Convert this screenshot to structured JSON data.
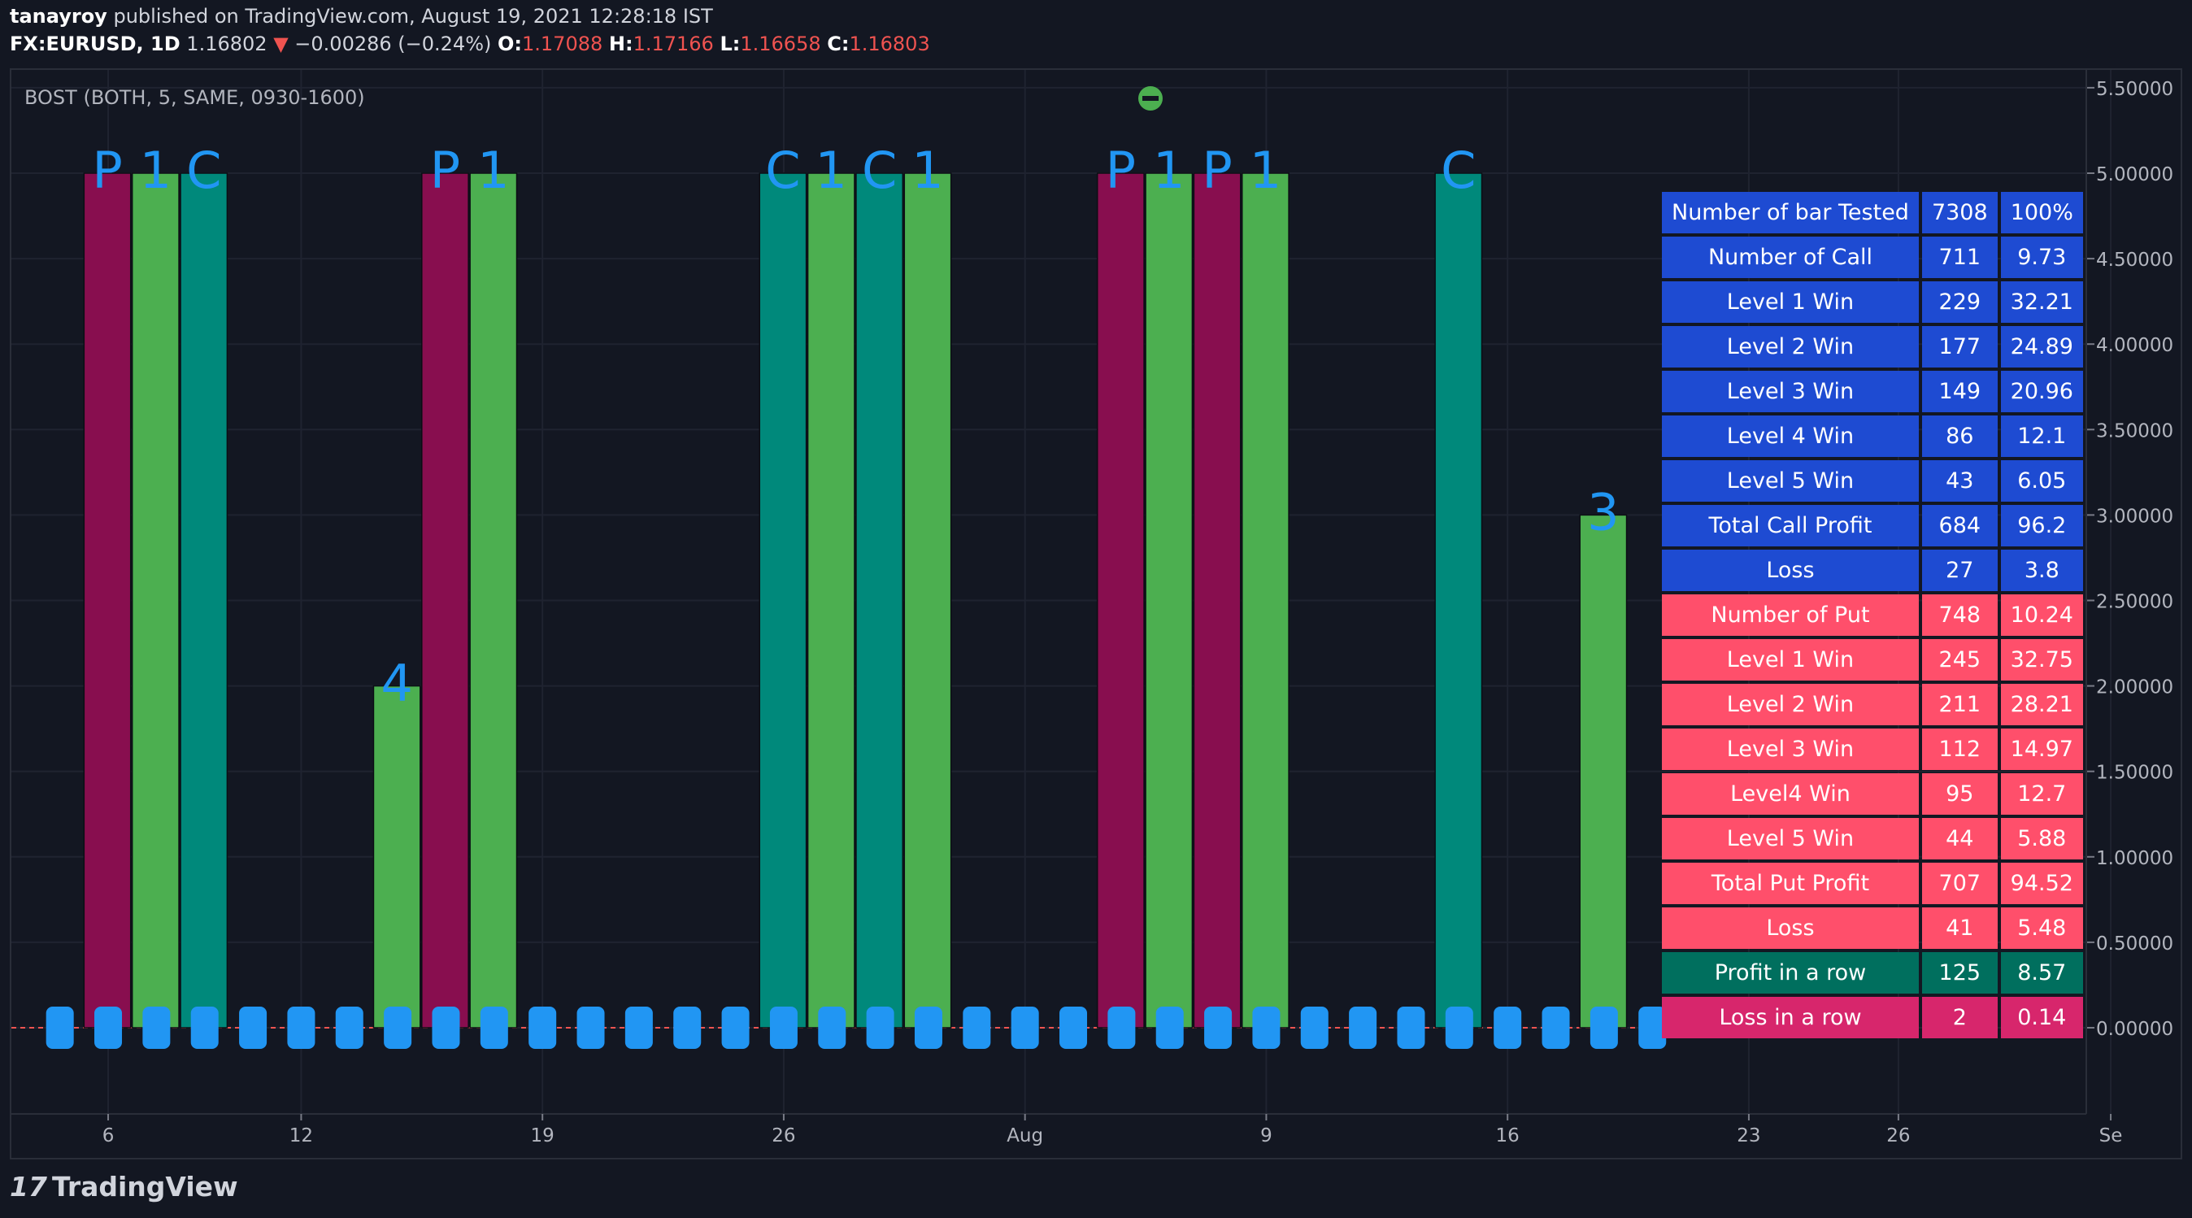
{
  "header": {
    "author": "tanayroy",
    "published_text": " published on TradingView.com, August 19, 2021 12:28:18 IST",
    "symbol": "FX:EURUSD, 1D",
    "last": "1.16802",
    "change_arrow": "▼",
    "change": "−0.00286 (−0.24%)",
    "open_label": "O:",
    "open": "1.17088",
    "high_label": "H:",
    "high": "1.17166",
    "low_label": "L:",
    "low": "1.16658",
    "close_label": "C:",
    "close": "1.16803"
  },
  "indicator_label": "BOST (BOTH, 5, SAME, 0930-1600)",
  "footer": {
    "logo_mark": "17",
    "logo_text": "TradingView"
  },
  "colors": {
    "background": "#131722",
    "grid": "#1f2330",
    "put_bar": "#880e4f",
    "green_bar": "#4caf50",
    "call_bar": "#00897b",
    "marker_text": "#2196f3",
    "zero_line": "#ef5350",
    "table_blue": "#1e4bd2",
    "table_red": "#ff4f6b",
    "table_green": "#006f5e",
    "table_pink": "#d7266c"
  },
  "chart_data": {
    "type": "bar",
    "y_axis": {
      "ylim": [
        -0.5,
        5.65
      ],
      "ticks": [
        5.5,
        5.0,
        4.5,
        4.0,
        3.5,
        3.0,
        2.5,
        2.0,
        1.5,
        1.0,
        0.5,
        0.0
      ],
      "tick_labels": [
        "5.50000",
        "5.00000",
        "4.50000",
        "4.00000",
        "3.50000",
        "3.00000",
        "2.50000",
        "2.00000",
        "1.50000",
        "1.00000",
        "0.50000",
        "0.00000"
      ]
    },
    "x_axis": {
      "ticks": [
        {
          "slot": 1,
          "label": "6"
        },
        {
          "slot": 5,
          "label": "12"
        },
        {
          "slot": 10,
          "label": "19"
        },
        {
          "slot": 15,
          "label": "26"
        },
        {
          "slot": 20,
          "label": "Aug"
        },
        {
          "slot": 25,
          "label": "9"
        },
        {
          "slot": 30,
          "label": "16"
        },
        {
          "slot": 35,
          "label": "23"
        },
        {
          "slot": 38.1,
          "label": "26"
        },
        {
          "slot": 42.5,
          "label": "Se"
        }
      ]
    },
    "slot_count": 43,
    "marker_slots": [
      0,
      1,
      2,
      3,
      4,
      5,
      6,
      7,
      8,
      9,
      10,
      11,
      12,
      13,
      14,
      15,
      16,
      17,
      18,
      19,
      20,
      21,
      22,
      23,
      24,
      25,
      26,
      27,
      28,
      29,
      30,
      31,
      32,
      33
    ],
    "bars": [
      {
        "slot": 1,
        "value": 5,
        "kind": "put",
        "label": "P"
      },
      {
        "slot": 2,
        "value": 5,
        "kind": "green",
        "label": "1"
      },
      {
        "slot": 3,
        "value": 5,
        "kind": "call",
        "label": "C"
      },
      {
        "slot": 7,
        "value": 2,
        "kind": "green",
        "label": "4"
      },
      {
        "slot": 8,
        "value": 5,
        "kind": "put",
        "label": "P"
      },
      {
        "slot": 9,
        "value": 5,
        "kind": "green",
        "label": "1"
      },
      {
        "slot": 15,
        "value": 5,
        "kind": "call",
        "label": "C"
      },
      {
        "slot": 16,
        "value": 5,
        "kind": "green",
        "label": "1"
      },
      {
        "slot": 17,
        "value": 5,
        "kind": "call",
        "label": "C"
      },
      {
        "slot": 18,
        "value": 5,
        "kind": "green",
        "label": "1"
      },
      {
        "slot": 22,
        "value": 5,
        "kind": "put",
        "label": "P"
      },
      {
        "slot": 23,
        "value": 5,
        "kind": "green",
        "label": "1"
      },
      {
        "slot": 24,
        "value": 5,
        "kind": "put",
        "label": "P"
      },
      {
        "slot": 25,
        "value": 5,
        "kind": "green",
        "label": "1"
      },
      {
        "slot": 29,
        "value": 5,
        "kind": "call",
        "label": "C"
      },
      {
        "slot": 32,
        "value": 3,
        "kind": "green",
        "label": "3"
      }
    ]
  },
  "table": {
    "rows": [
      {
        "label": "Number of bar Tested",
        "count": "7308",
        "pct": "100%",
        "style": "blue"
      },
      {
        "label": "Number of Call",
        "count": "711",
        "pct": "9.73",
        "style": "blue"
      },
      {
        "label": "Level 1 Win",
        "count": "229",
        "pct": "32.21",
        "style": "blue"
      },
      {
        "label": "Level 2 Win",
        "count": "177",
        "pct": "24.89",
        "style": "blue"
      },
      {
        "label": "Level 3 Win",
        "count": "149",
        "pct": "20.96",
        "style": "blue"
      },
      {
        "label": "Level 4 Win",
        "count": "86",
        "pct": "12.1",
        "style": "blue"
      },
      {
        "label": "Level 5 Win",
        "count": "43",
        "pct": "6.05",
        "style": "blue"
      },
      {
        "label": "Total Call Profit",
        "count": "684",
        "pct": "96.2",
        "style": "blue"
      },
      {
        "label": "Loss",
        "count": "27",
        "pct": "3.8",
        "style": "blue"
      },
      {
        "label": "Number of Put",
        "count": "748",
        "pct": "10.24",
        "style": "red"
      },
      {
        "label": "Level 1 Win",
        "count": "245",
        "pct": "32.75",
        "style": "red"
      },
      {
        "label": "Level 2 Win",
        "count": "211",
        "pct": "28.21",
        "style": "red"
      },
      {
        "label": "Level 3 Win",
        "count": "112",
        "pct": "14.97",
        "style": "red"
      },
      {
        "label": "Level4 Win",
        "count": "95",
        "pct": "12.7",
        "style": "red"
      },
      {
        "label": "Level 5 Win",
        "count": "44",
        "pct": "5.88",
        "style": "red"
      },
      {
        "label": "Total Put Profit",
        "count": "707",
        "pct": "94.52",
        "style": "red"
      },
      {
        "label": "Loss",
        "count": "41",
        "pct": "5.48",
        "style": "red"
      },
      {
        "label": "Profit in a row",
        "count": "125",
        "pct": "8.57",
        "style": "green"
      },
      {
        "label": "Loss in a row",
        "count": "2",
        "pct": "0.14",
        "style": "pink"
      }
    ]
  }
}
